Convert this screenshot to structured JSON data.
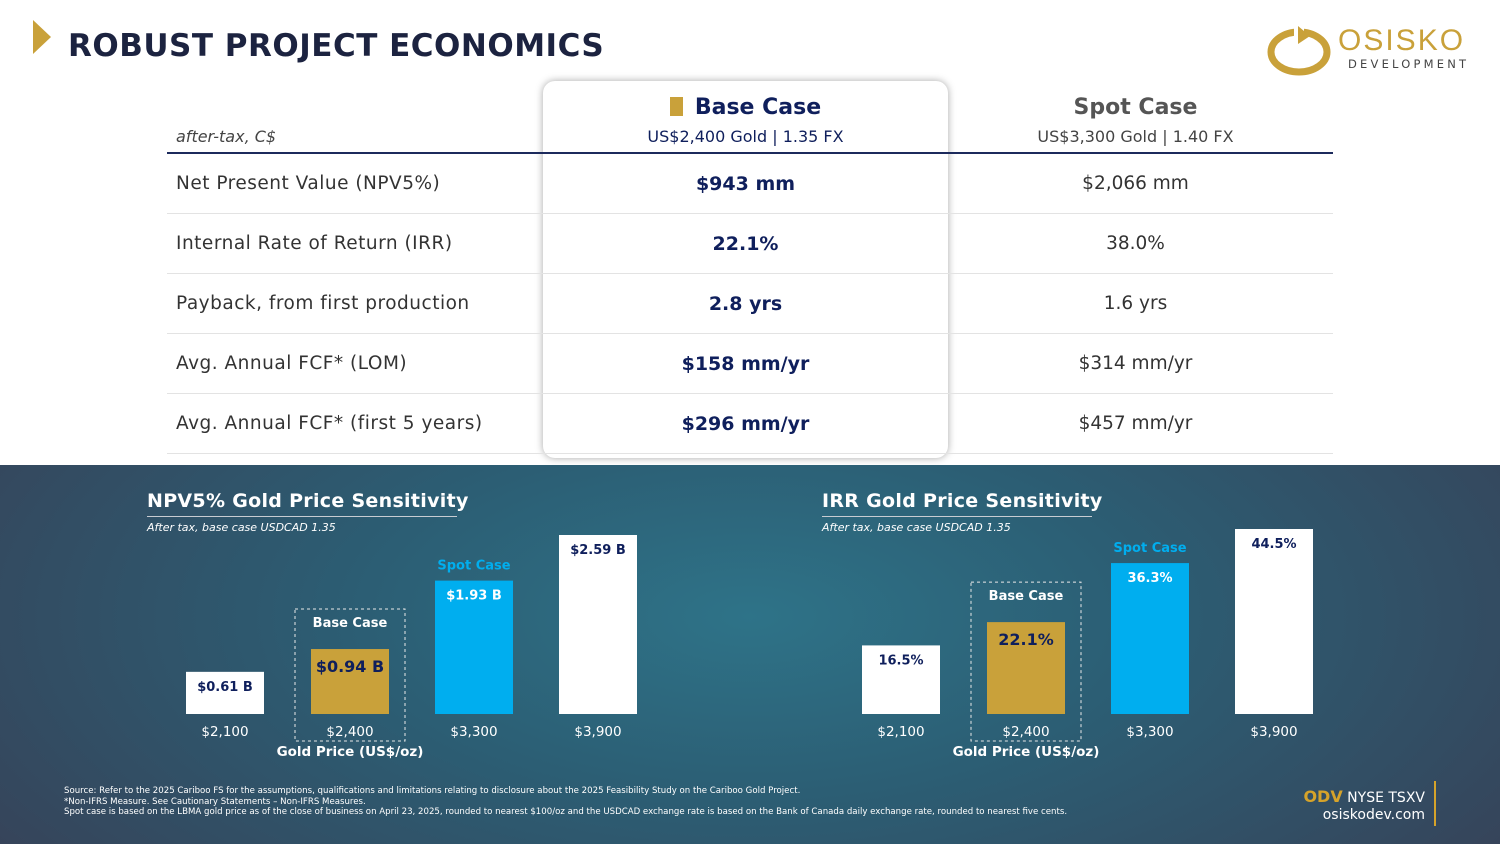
{
  "header": {
    "title": "ROBUST PROJECT ECONOMICS"
  },
  "logo": {
    "name": "OSISKO",
    "sub": "DEVELOPMENT"
  },
  "table": {
    "units": "after-tax, C$",
    "base": {
      "title": "Base Case",
      "sub": "US$2,400 Gold | 1.35 FX"
    },
    "spot": {
      "title": "Spot Case",
      "sub": "US$3,300 Gold | 1.40 FX"
    },
    "rows": [
      {
        "label": "Net Present Value (NPV5%)",
        "base": "$943 mm",
        "spot": "$2,066 mm"
      },
      {
        "label": "Internal Rate of Return (IRR)",
        "base": "22.1%",
        "spot": "38.0%"
      },
      {
        "label": "Payback, from first production",
        "base": "2.8 yrs",
        "spot": "1.6 yrs"
      },
      {
        "label": "Avg. Annual FCF* (LOM)",
        "base": "$158 mm/yr",
        "spot": "$314 mm/yr"
      },
      {
        "label": "Avg. Annual FCF* (first 5 years)",
        "base": "$296 mm/yr",
        "spot": "$457 mm/yr"
      }
    ]
  },
  "colors": {
    "navy": "#0f1f5c",
    "gold": "#c9a13a",
    "spot": "#00aeef",
    "white": "#ffffff"
  },
  "chart_data": [
    {
      "type": "bar",
      "title": "NPV5% Gold Price Sensitivity",
      "subtitle": "After tax, base case USDCAD 1.35",
      "xlabel": "Gold Price (US$/oz)",
      "ylabel": "",
      "unit": "B",
      "categories": [
        "$2,100",
        "$2,400",
        "$3,300",
        "$3,900"
      ],
      "values": [
        0.61,
        0.94,
        1.93,
        2.59
      ],
      "data_labels": [
        "$0.61 B",
        "$0.94 B",
        "$1.93 B",
        "$2.59 B"
      ],
      "highlights": [
        "",
        "Base Case",
        "Spot Case",
        ""
      ],
      "ylim": [
        0,
        2.59
      ]
    },
    {
      "type": "bar",
      "title": "IRR Gold Price Sensitivity",
      "subtitle": "After tax, base case USDCAD 1.35",
      "xlabel": "Gold Price (US$/oz)",
      "ylabel": "",
      "unit": "%",
      "categories": [
        "$2,100",
        "$2,400",
        "$3,300",
        "$3,900"
      ],
      "values": [
        16.5,
        22.1,
        36.3,
        44.5
      ],
      "data_labels": [
        "16.5%",
        "22.1%",
        "36.3%",
        "44.5%"
      ],
      "highlights": [
        "",
        "Base Case",
        "Spot Case",
        ""
      ],
      "ylim": [
        0,
        44.5
      ]
    }
  ],
  "footnotes": [
    "Source: Refer to the 2025 Cariboo FS for the assumptions, qualifications and limitations relating to disclosure about the 2025 Feasibility Study on the Cariboo Gold Project.",
    "*Non-IFRS Measure. See Cautionary Statements – Non-IFRS Measures.",
    "Spot case is based on the LBMA gold price as of the close of business on April 23, 2025, rounded to nearest $100/oz and the USDCAD exchange rate is based on the Bank of Canada daily exchange rate, rounded to nearest five cents."
  ],
  "ticker": {
    "symbol": "ODV",
    "exchanges": "NYSE TSXV",
    "website": "osiskodev.com"
  }
}
